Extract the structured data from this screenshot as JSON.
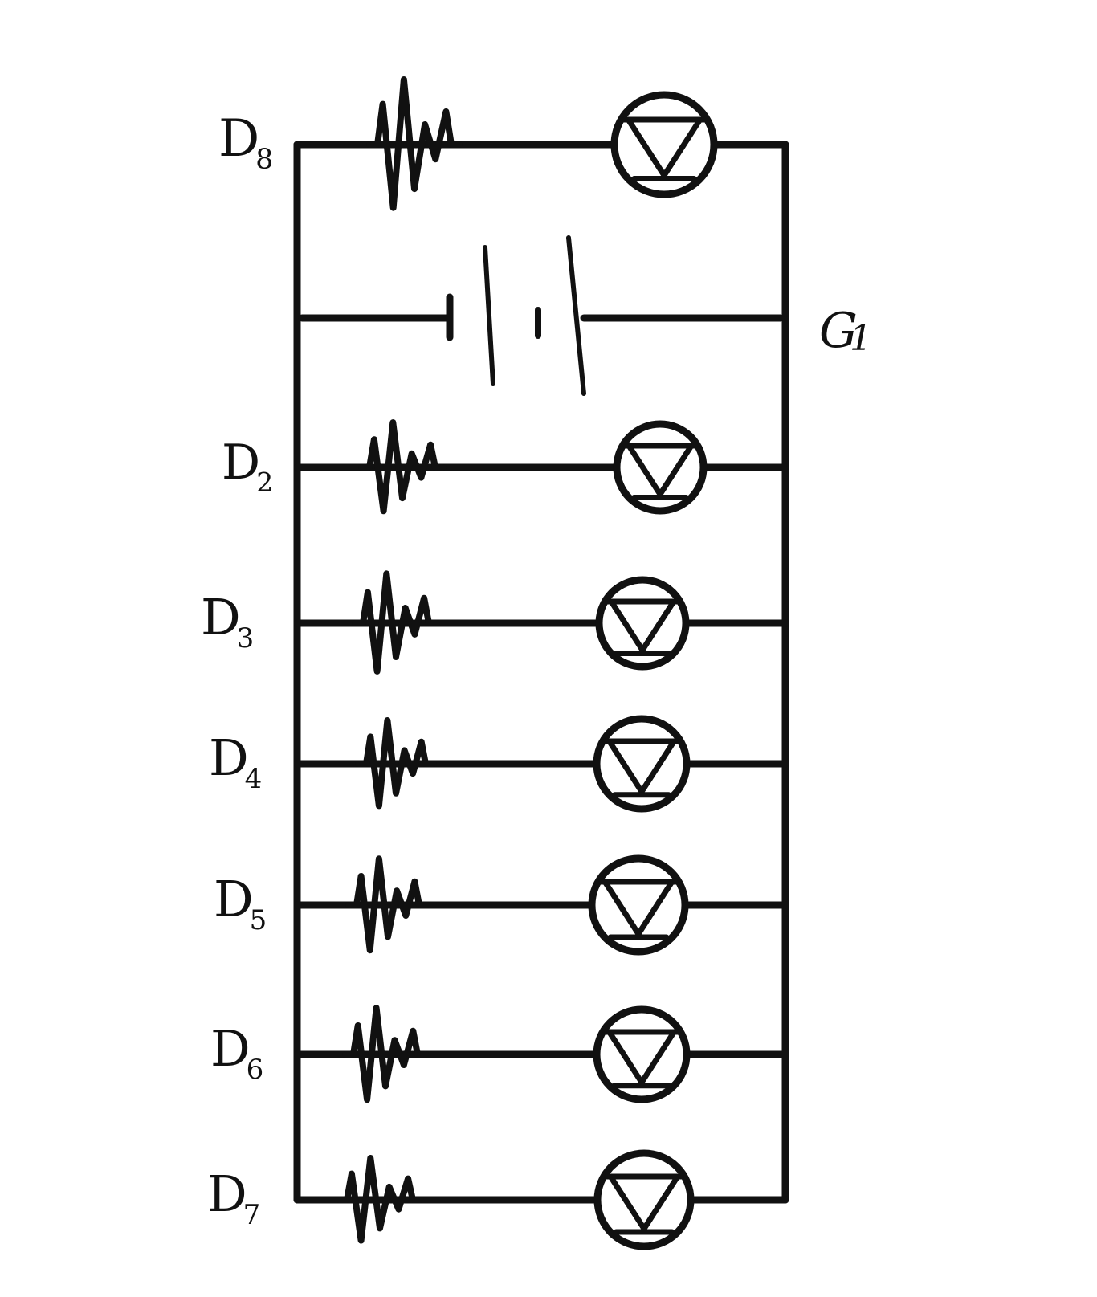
{
  "diagram": {
    "source_label": "G",
    "source_label_sub": "1",
    "branches": [
      {
        "id": "D8",
        "letter": "D",
        "sub": "8"
      },
      {
        "id": "D2",
        "letter": "D",
        "sub": "2"
      },
      {
        "id": "D3",
        "letter": "D",
        "sub": "3"
      },
      {
        "id": "D4",
        "letter": "D",
        "sub": "4"
      },
      {
        "id": "D5",
        "letter": "D",
        "sub": "5"
      },
      {
        "id": "D6",
        "letter": "D",
        "sub": "6"
      },
      {
        "id": "D7",
        "letter": "D",
        "sub": "7"
      }
    ],
    "ink_color": "#111111",
    "paper_color": "#ffffff"
  }
}
